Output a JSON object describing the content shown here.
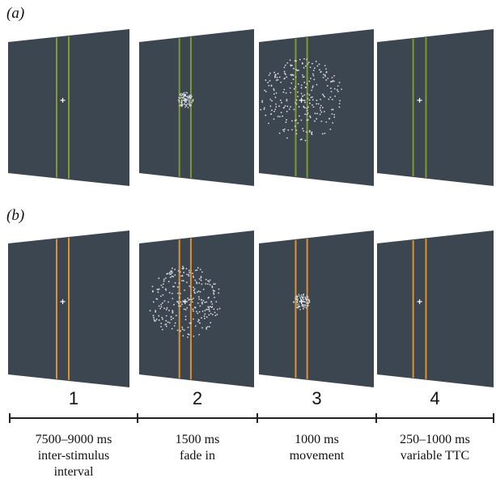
{
  "panels": [
    {
      "label": "(a)"
    },
    {
      "label": "(b)"
    }
  ],
  "steps": [
    {
      "number": "1",
      "lines": [
        "7500–9000 ms",
        "inter-stimulus",
        "interval"
      ]
    },
    {
      "number": "2",
      "lines": [
        "1500 ms",
        "fade in"
      ]
    },
    {
      "number": "3",
      "lines": [
        "1000 ms",
        "movement"
      ]
    },
    {
      "number": "4",
      "lines": [
        "250–1000 ms",
        "variable TTC"
      ]
    }
  ]
}
